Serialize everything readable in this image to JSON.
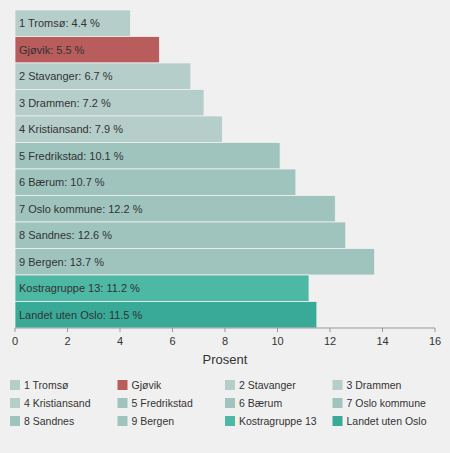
{
  "chart_data": {
    "type": "bar",
    "orientation": "horizontal",
    "categories": [
      "1 Tromsø",
      "Gjøvik",
      "2 Stavanger",
      "3 Drammen",
      "4 Kristiansand",
      "5 Fredrikstad",
      "6 Bærum",
      "7 Oslo kommune",
      "8 Sandnes",
      "9 Bergen",
      "Kostragruppe 13",
      "Landet uten Oslo"
    ],
    "values": [
      4.4,
      5.5,
      6.7,
      7.2,
      7.9,
      10.1,
      10.7,
      12.2,
      12.6,
      13.7,
      11.2,
      11.5
    ],
    "colors": [
      "#b5ceca",
      "#b85c5c",
      "#b5ceca",
      "#b5ceca",
      "#b5ceca",
      "#9fc4be",
      "#9fc4be",
      "#9fc4be",
      "#9fc4be",
      "#9fc4be",
      "#4db8a4",
      "#3aaa98"
    ],
    "data_labels": true,
    "value_labels": [
      "1 Tromsø: 4.4 %",
      "Gjøvik: 5.5 %",
      "2 Stavanger: 6.7 %",
      "3 Drammen: 7.2 %",
      "4 Kristiansand: 7.9 %",
      "5 Fredrikstad: 10.1 %",
      "6 Bærum: 10.7 %",
      "7 Oslo kommune: 12.2 %",
      "8 Sandnes: 12.6 %",
      "9 Bergen: 13.7 %",
      "Kostragruppe 13: 11.2 %",
      "Landet uten Oslo: 11.5 %"
    ],
    "xlabel": "Prosent",
    "xlim": [
      0,
      16
    ],
    "xticks": [
      0,
      2,
      4,
      6,
      8,
      10,
      12,
      14,
      16
    ],
    "grid": false,
    "tick_labels": "x",
    "legend": "bottom"
  }
}
